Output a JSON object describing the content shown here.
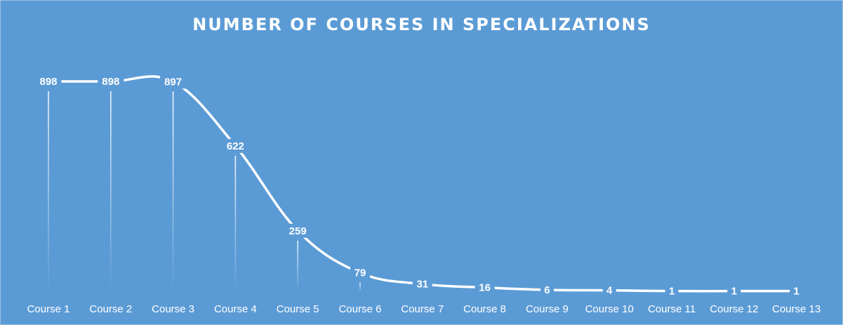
{
  "colors": {
    "background": "#5b9bd5",
    "line": "#ffffff",
    "text": "#ffffff"
  },
  "chart_data": {
    "type": "line",
    "title": "NUMBER OF COURSES IN SPECIALIZATIONS",
    "categories": [
      "Course 1",
      "Course 2",
      "Course 3",
      "Course 4",
      "Course 5",
      "Course 6",
      "Course 7",
      "Course 8",
      "Course 9",
      "Course 10",
      "Course 11",
      "Course 12",
      "Course 13"
    ],
    "series": [
      {
        "values": [
          898,
          898,
          897,
          622,
          259,
          79,
          31,
          16,
          6,
          4,
          1,
          1,
          1
        ]
      }
    ],
    "ylim": [
      0,
      898
    ],
    "grid": false,
    "legend": "none",
    "data_labels": true,
    "drop_lines": true
  }
}
